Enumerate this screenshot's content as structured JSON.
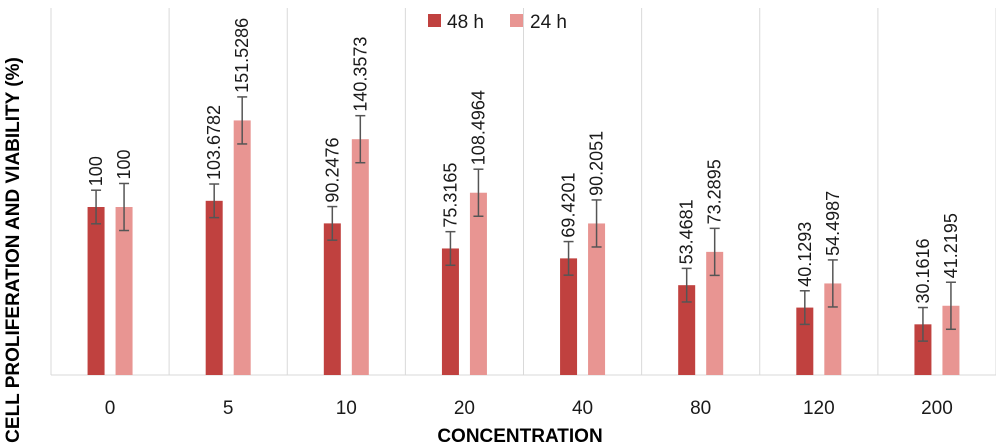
{
  "chart_data": {
    "type": "bar",
    "xlabel": "CONCENTRATION",
    "ylabel": "CELL PROLIFERATION AND VIABILITY (%)",
    "categories": [
      "0",
      "5",
      "10",
      "20",
      "40",
      "80",
      "120",
      "200"
    ],
    "series": [
      {
        "name": "48 h",
        "color": "#c0413f",
        "values": [
          100,
          103.6782,
          90.2476,
          75.3165,
          69.4201,
          53.4681,
          40.1293,
          30.1616
        ],
        "error": [
          10,
          10,
          10,
          10,
          10,
          10,
          10,
          10
        ],
        "labels": [
          "100",
          "103.6782",
          "90.2476",
          "75.3165",
          "69.4201",
          "53.4681",
          "40.1293",
          "30.1616"
        ]
      },
      {
        "name": "24 h",
        "color": "#e89592",
        "values": [
          100,
          151.5286,
          140.3573,
          108.4964,
          90.2051,
          73.2895,
          54.4987,
          41.2195
        ],
        "error": [
          14,
          14,
          14,
          14,
          14,
          14,
          14,
          14
        ],
        "labels": [
          "100",
          "151.5286",
          "140.3573",
          "108.4964",
          "90.2051",
          "73.2895",
          "54.4987",
          "41.2195"
        ]
      }
    ],
    "ylim": [
      0,
      200
    ],
    "grid": "vertical",
    "legend": "top-center"
  }
}
